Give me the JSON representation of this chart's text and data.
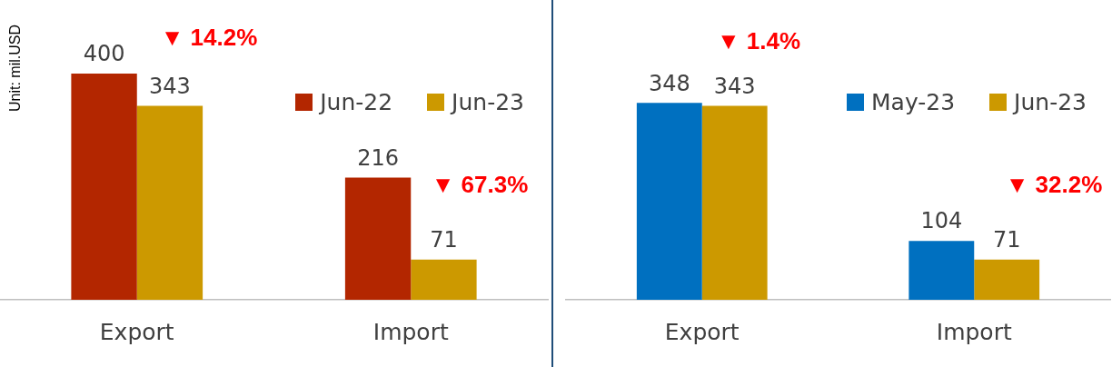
{
  "chart_data": [
    {
      "type": "bar",
      "ylabel": "Unit: mil.USD",
      "categories": [
        "Export",
        "Import"
      ],
      "ylim": [
        0,
        530
      ],
      "tick_labels": "x",
      "data_labels": true,
      "legend": "top right",
      "series": [
        {
          "name": "Jun-22",
          "color": "#b32600",
          "values": [
            400,
            216
          ]
        },
        {
          "name": "Jun-23",
          "color": "#cc9900",
          "values": [
            343,
            71
          ]
        }
      ],
      "annotations": [
        "▼ 14.2%",
        "▼ 67.3%"
      ]
    },
    {
      "type": "bar",
      "categories": [
        "Export",
        "Import"
      ],
      "ylim": [
        0,
        530
      ],
      "tick_labels": "x",
      "data_labels": true,
      "legend": "top right",
      "series": [
        {
          "name": "May-23",
          "color": "#0070c0",
          "values": [
            348,
            104
          ]
        },
        {
          "name": "Jun-23",
          "color": "#cc9900",
          "values": [
            343,
            71
          ]
        }
      ],
      "annotations": [
        "▼ 1.4%",
        "▼ 32.2%"
      ]
    }
  ]
}
